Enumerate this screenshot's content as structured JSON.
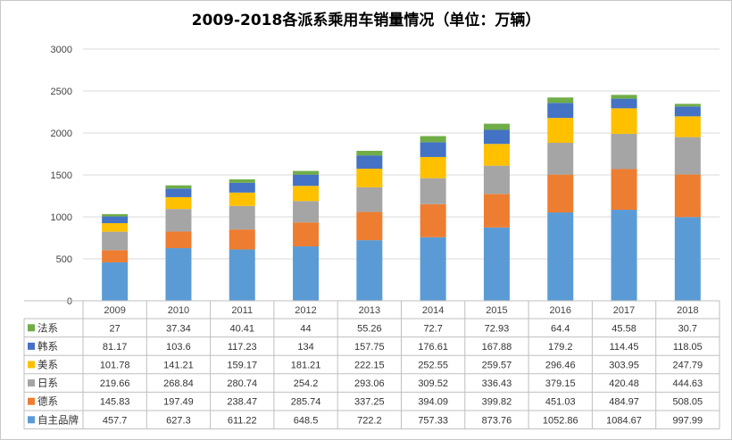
{
  "chart_data": {
    "type": "bar",
    "stacked": true,
    "title": "2009-2018各派系乘用车销量情况（单位：万辆）",
    "categories": [
      "2009",
      "2010",
      "2011",
      "2012",
      "2013",
      "2014",
      "2015",
      "2016",
      "2017",
      "2018"
    ],
    "ylim": [
      0,
      3000
    ],
    "yticks": [
      "0",
      "500",
      "1000",
      "1500",
      "2000",
      "2500",
      "3000"
    ],
    "grid": true,
    "legend_placement": "data-table-left",
    "series": [
      {
        "name": "自主品牌",
        "color": "#5B9BD5",
        "values": [
          "457.7",
          "627.3",
          "611.22",
          "648.5",
          "722.2",
          "757.33",
          "873.76",
          "1052.86",
          "1084.67",
          "997.99"
        ]
      },
      {
        "name": "德系",
        "color": "#ED7D31",
        "values": [
          "145.83",
          "197.49",
          "238.47",
          "285.74",
          "337.25",
          "394.09",
          "399.82",
          "451.03",
          "484.97",
          "508.05"
        ]
      },
      {
        "name": "日系",
        "color": "#A5A5A5",
        "values": [
          "219.66",
          "268.84",
          "280.74",
          "254.2",
          "293.06",
          "309.52",
          "336.43",
          "379.15",
          "420.48",
          "444.63"
        ]
      },
      {
        "name": "美系",
        "color": "#FFC000",
        "values": [
          "101.78",
          "141.21",
          "159.17",
          "181.21",
          "222.15",
          "252.55",
          "259.57",
          "296.46",
          "303.95",
          "247.79"
        ]
      },
      {
        "name": "韩系",
        "color": "#4472C4",
        "values": [
          "81.17",
          "103.6",
          "117.23",
          "134",
          "157.75",
          "176.61",
          "167.88",
          "179.2",
          "114.45",
          "118.05"
        ]
      },
      {
        "name": "法系",
        "color": "#70AD47",
        "values": [
          "27",
          "37.34",
          "40.41",
          "44",
          "55.26",
          "72.7",
          "72.93",
          "64.4",
          "45.58",
          "30.7"
        ]
      }
    ]
  }
}
